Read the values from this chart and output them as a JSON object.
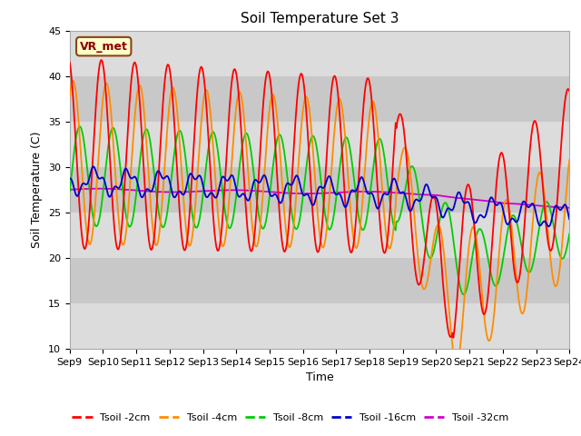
{
  "title": "Soil Temperature Set 3",
  "xlabel": "Time",
  "ylabel": "Soil Temperature (C)",
  "ylim": [
    10,
    45
  ],
  "yticks": [
    10,
    15,
    20,
    25,
    30,
    35,
    40,
    45
  ],
  "colors": {
    "Tsoil -2cm": "#FF0000",
    "Tsoil -4cm": "#FF8C00",
    "Tsoil -8cm": "#00CC00",
    "Tsoil -16cm": "#0000CC",
    "Tsoil -32cm": "#CC00CC"
  },
  "legend_label": "VR_met",
  "bg_light": "#DCDCDC",
  "bg_dark": "#C8C8C8",
  "x_tick_labels": [
    "Sep 9",
    "Sep 10",
    "Sep 11",
    "Sep 12",
    "Sep 13",
    "Sep 14",
    "Sep 15",
    "Sep 16",
    "Sep 17",
    "Sep 18",
    "Sep 19",
    "Sep 20",
    "Sep 21",
    "Sep 22",
    "Sep 23",
    "Sep 24"
  ],
  "num_points": 720
}
